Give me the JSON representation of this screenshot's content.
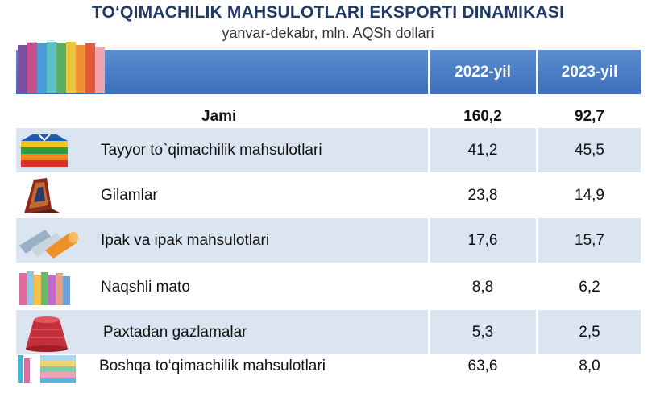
{
  "header": {
    "title": "TO‘QIMACHILIK MAHSULOTLARI EKSPORTI DINAMIKASI",
    "subtitle": "yanvar-dekabr, mln. AQSh dollari",
    "col_2022": "2022-yil",
    "col_2023": "2023-yil"
  },
  "colors": {
    "band": "#4a7cc4",
    "row_shade": "#dbe5f1",
    "title": "#1f3b66"
  },
  "rows": [
    {
      "label": "Jami",
      "v2022": "160,2",
      "v2023": "92,7",
      "icon": ""
    },
    {
      "label": "Tayyor to`qimachilik mahsulotlari",
      "v2022": "41,2",
      "v2023": "45,5",
      "icon": "folded-shirts-icon"
    },
    {
      "label": "Gilamlar",
      "v2022": "23,8",
      "v2023": "14,9",
      "icon": "carpet-icon"
    },
    {
      "label": "Ipak va ipak mahsulotlari",
      "v2022": "17,6",
      "v2023": "15,7",
      "icon": "silk-rolls-icon"
    },
    {
      "label": "Naqshli mato",
      "v2022": "8,8",
      "v2023": "6,2",
      "icon": "patterned-fabric-icon"
    },
    {
      "label": "Paxtadan gazlamalar",
      "v2022": "5,3",
      "v2023": "2,5",
      "icon": "yarn-cone-icon"
    },
    {
      "label": "Boshqa to‘qimachilik mahsulotlari",
      "v2022": "63,6",
      "v2023": "8,0",
      "icon": "fabric-stack-icon"
    }
  ]
}
